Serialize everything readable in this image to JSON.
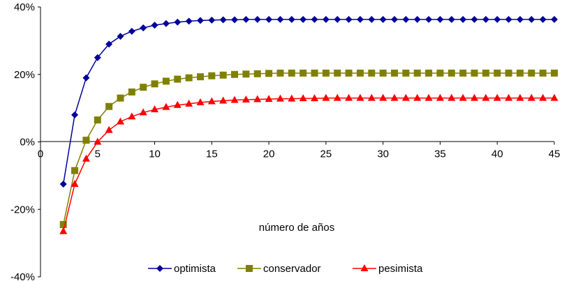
{
  "chart_data": {
    "type": "line",
    "title": "",
    "xlabel": "número de años",
    "ylabel": "",
    "xlim": [
      0,
      45
    ],
    "ylim": [
      -40,
      40
    ],
    "x_ticks": [
      0,
      5,
      10,
      15,
      20,
      25,
      30,
      35,
      40,
      45
    ],
    "y_ticks": [
      -40,
      -20,
      0,
      20,
      40
    ],
    "y_tick_labels": [
      "-40%",
      "-20%",
      "0%",
      "20%",
      "40%"
    ],
    "grid": false,
    "legend_position": "bottom",
    "x": [
      2,
      3,
      4,
      5,
      6,
      7,
      8,
      9,
      10,
      11,
      12,
      13,
      14,
      15,
      16,
      17,
      18,
      19,
      20,
      21,
      22,
      23,
      24,
      25,
      26,
      27,
      28,
      29,
      30,
      31,
      32,
      33,
      34,
      35,
      36,
      37,
      38,
      39,
      40,
      41,
      42,
      43,
      44,
      45
    ],
    "series": [
      {
        "name": "optimista",
        "color": "#000099",
        "marker": "diamond",
        "values": [
          -12.5,
          8,
          19,
          25,
          29,
          31.3,
          32.8,
          33.8,
          34.6,
          35.1,
          35.5,
          35.8,
          36,
          36.1,
          36.2,
          36.2,
          36.3,
          36.3,
          36.3,
          36.3,
          36.3,
          36.3,
          36.3,
          36.3,
          36.3,
          36.3,
          36.3,
          36.3,
          36.3,
          36.3,
          36.3,
          36.3,
          36.3,
          36.3,
          36.3,
          36.3,
          36.3,
          36.3,
          36.3,
          36.3,
          36.3,
          36.3,
          36.3,
          36.3
        ]
      },
      {
        "name": "conservador",
        "color": "#808000",
        "marker": "square",
        "values": [
          -24.5,
          -8.5,
          0.5,
          6.5,
          10.5,
          13,
          14.8,
          16.2,
          17.2,
          18,
          18.6,
          19,
          19.3,
          19.6,
          19.8,
          20,
          20.1,
          20.2,
          20.3,
          20.4,
          20.4,
          20.4,
          20.4,
          20.4,
          20.4,
          20.4,
          20.4,
          20.4,
          20.4,
          20.4,
          20.4,
          20.4,
          20.4,
          20.4,
          20.4,
          20.4,
          20.4,
          20.4,
          20.4,
          20.4,
          20.4,
          20.4,
          20.4,
          20.4
        ]
      },
      {
        "name": "pesimista",
        "color": "#ff0000",
        "marker": "triangle",
        "values": [
          -26.5,
          -12.5,
          -5,
          0,
          3.5,
          6,
          7.5,
          8.7,
          9.6,
          10.3,
          10.9,
          11.3,
          11.7,
          12,
          12.2,
          12.4,
          12.5,
          12.6,
          12.7,
          12.8,
          12.8,
          12.9,
          12.9,
          13,
          13,
          13,
          13,
          13,
          13,
          13,
          13,
          13,
          13,
          13,
          13,
          13,
          13,
          13,
          13,
          13,
          13,
          13,
          13,
          13
        ]
      }
    ]
  }
}
